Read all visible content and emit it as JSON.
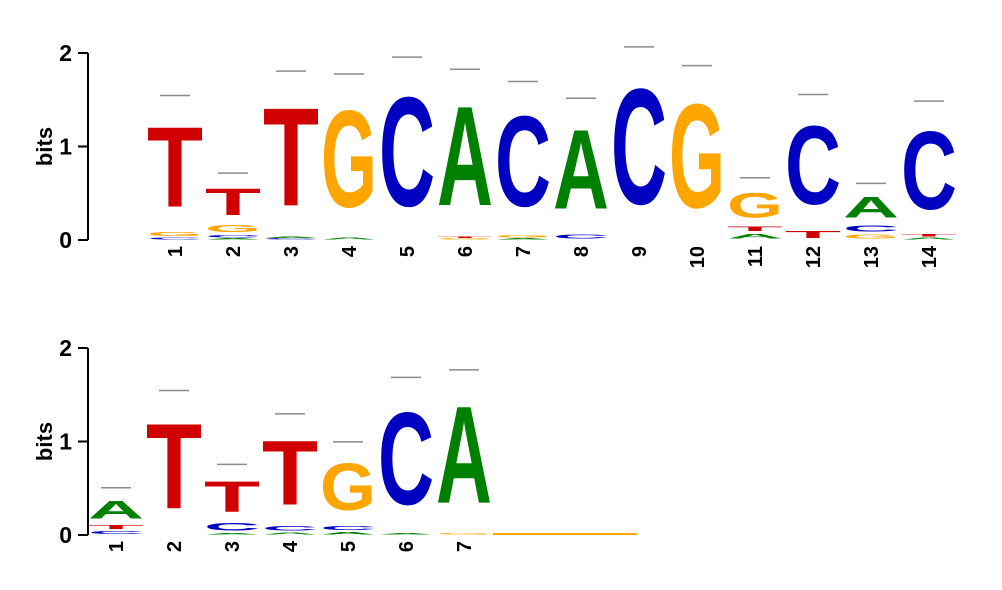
{
  "colors": {
    "A": "#008000",
    "C": "#0000c0",
    "G": "#ffa500",
    "T": "#d00000",
    "errorbar": "#8c8c8c",
    "axis": "#000000"
  },
  "chart_data": [
    {
      "type": "sequence-logo",
      "ylabel": "bits",
      "ylim": [
        0,
        2
      ],
      "yticks": [
        "0",
        "1",
        "2"
      ],
      "positions": [
        "1",
        "2",
        "3",
        "4",
        "5",
        "6",
        "7",
        "8",
        "9",
        "10",
        "11",
        "12",
        "13",
        "14"
      ],
      "stacks": [
        [
          {
            "b": "C",
            "h": 0.03
          },
          {
            "b": "G",
            "h": 0.06
          },
          {
            "b": "T",
            "h": 1.37
          }
        ],
        [
          {
            "b": "A",
            "h": 0.02
          },
          {
            "b": "C",
            "h": 0.04
          },
          {
            "b": "G",
            "h": 0.12
          },
          {
            "b": "T",
            "h": 0.45
          }
        ],
        [
          {
            "b": "C",
            "h": 0.02
          },
          {
            "b": "A",
            "h": 0.02
          },
          {
            "b": "T",
            "h": 1.68
          }
        ],
        [
          {
            "b": "A",
            "h": 0.03
          },
          {
            "b": "G",
            "h": 1.66
          }
        ],
        [
          {
            "b": "C",
            "h": 1.87
          }
        ],
        [
          {
            "b": "G",
            "h": 0.02
          },
          {
            "b": "T",
            "h": 0.02
          },
          {
            "b": "A",
            "h": 1.7
          }
        ],
        [
          {
            "b": "A",
            "h": 0.02
          },
          {
            "b": "G",
            "h": 0.04
          },
          {
            "b": "C",
            "h": 1.55
          }
        ],
        [
          {
            "b": "C",
            "h": 0.07
          },
          {
            "b": "A",
            "h": 1.36
          }
        ],
        [
          {
            "b": "C",
            "h": 1.98
          }
        ],
        [
          {
            "b": "G",
            "h": 1.78
          }
        ],
        [
          {
            "b": "A",
            "h": 0.08
          },
          {
            "b": "T",
            "h": 0.08
          },
          {
            "b": "G",
            "h": 0.42
          }
        ],
        [
          {
            "b": "T",
            "h": 0.12
          },
          {
            "b": "C",
            "h": 1.35
          }
        ],
        [
          {
            "b": "G",
            "h": 0.07
          },
          {
            "b": "C",
            "h": 0.1
          },
          {
            "b": "A",
            "h": 0.35
          }
        ],
        [
          {
            "b": "A",
            "h": 0.03
          },
          {
            "b": "T",
            "h": 0.04
          },
          {
            "b": "C",
            "h": 1.33
          }
        ]
      ]
    },
    {
      "type": "sequence-logo",
      "ylabel": "bits",
      "ylim": [
        0,
        2
      ],
      "yticks": [
        "0",
        "1",
        "2"
      ],
      "positions": [
        "1",
        "2",
        "3",
        "4",
        "5",
        "6",
        "7"
      ],
      "stacks": [
        [
          {
            "b": "C",
            "h": 0.05
          },
          {
            "b": "T",
            "h": 0.07
          },
          {
            "b": "A",
            "h": 0.3
          }
        ],
        [
          {
            "b": "T",
            "h": 1.46
          }
        ],
        [
          {
            "b": "A",
            "h": 0.02
          },
          {
            "b": "C",
            "h": 0.13
          },
          {
            "b": "T",
            "h": 0.52
          }
        ],
        [
          {
            "b": "A",
            "h": 0.03
          },
          {
            "b": "C",
            "h": 0.08
          },
          {
            "b": "T",
            "h": 1.1
          }
        ],
        [
          {
            "b": "A",
            "h": 0.04
          },
          {
            "b": "C",
            "h": 0.07
          },
          {
            "b": "G",
            "h": 0.8
          }
        ],
        [
          {
            "b": "A",
            "h": 0.02
          },
          {
            "b": "C",
            "h": 1.58
          }
        ],
        [
          {
            "b": "G",
            "h": 0.02
          },
          {
            "b": "A",
            "h": 1.66
          }
        ]
      ]
    }
  ]
}
